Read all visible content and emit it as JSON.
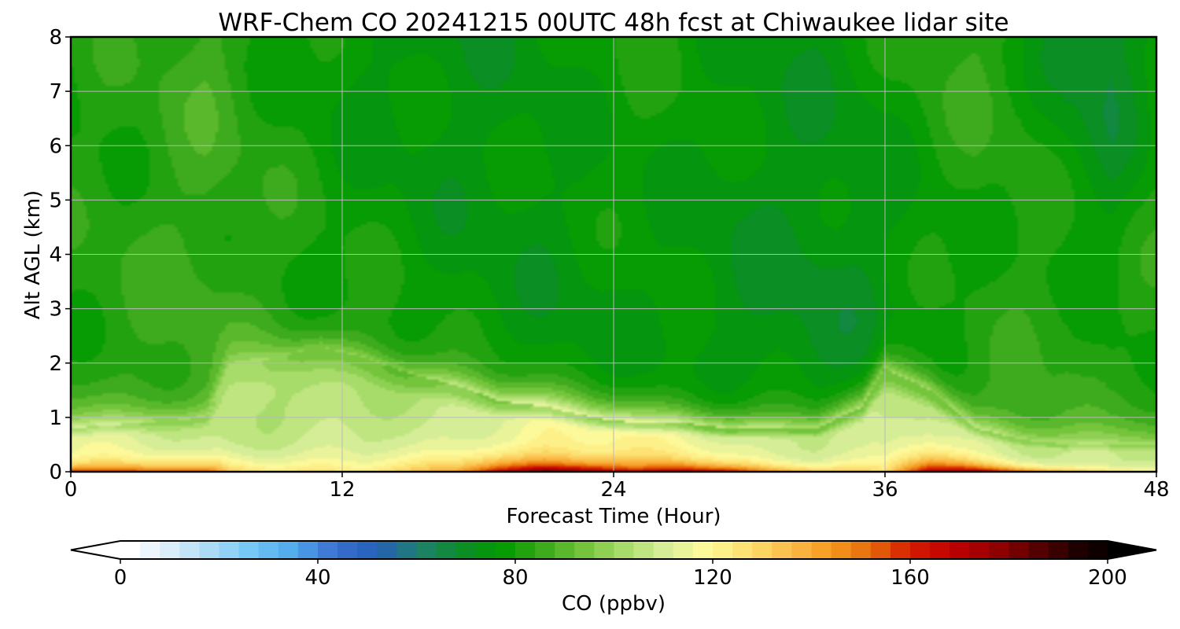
{
  "chart_data": {
    "type": "heatmap",
    "title": "WRF-Chem CO  20241215 00UTC 48h fcst at Chiwaukee lidar site",
    "xlabel": "Forecast Time (Hour)",
    "ylabel": "Alt AGL (km)",
    "xlim": [
      0,
      48
    ],
    "ylim": [
      0,
      8
    ],
    "xticks": [
      "0",
      "12",
      "24",
      "36",
      "48"
    ],
    "yticks": [
      "0",
      "1",
      "2",
      "3",
      "4",
      "5",
      "6",
      "7",
      "8"
    ],
    "grid": true,
    "colorbar": {
      "label": "CO  (ppbv)",
      "range": [
        0,
        200
      ],
      "ticks": [
        "0",
        "40",
        "80",
        "120",
        "160",
        "200"
      ],
      "extend": "both",
      "colors": [
        "#ffffff",
        "#d8ecf8",
        "#a8daf6",
        "#6fc6f5",
        "#4fa8ec",
        "#3a6fd0",
        "#2460b8",
        "#1e7f70",
        "#0d8c2a",
        "#009a00",
        "#3aa81a",
        "#72c43a",
        "#a8dc6a",
        "#d8ee9a",
        "#fffa9a",
        "#fde070",
        "#fbbe4a",
        "#f69a20",
        "#e66a0a",
        "#d41a00",
        "#c00000",
        "#960000",
        "#5a0000",
        "#200000",
        "#000000"
      ]
    },
    "profile_times": [
      0,
      3,
      6,
      7,
      9,
      11,
      13,
      15,
      17,
      19,
      21,
      23,
      25,
      27,
      29,
      31,
      33,
      35,
      36,
      38,
      40,
      42,
      44,
      46,
      48
    ],
    "pbl_top_km": [
      0.8,
      0.9,
      1.0,
      1.9,
      2.1,
      2.3,
      2.1,
      1.8,
      1.6,
      1.3,
      1.2,
      1.0,
      0.9,
      0.9,
      0.8,
      0.8,
      0.8,
      1.2,
      1.9,
      1.5,
      0.8,
      0.6,
      0.5,
      0.5,
      0.5
    ],
    "surface_co_ppbv": [
      160,
      158,
      155,
      135,
      128,
      125,
      122,
      130,
      142,
      175,
      190,
      185,
      165,
      180,
      170,
      150,
      140,
      128,
      125,
      175,
      180,
      160,
      140,
      128,
      122
    ],
    "pbl_co_ppbv": [
      112,
      110,
      108,
      104,
      103,
      102,
      103,
      106,
      110,
      114,
      116,
      116,
      118,
      116,
      114,
      110,
      108,
      106,
      104,
      110,
      112,
      110,
      108,
      106,
      105
    ],
    "free_trop_co_ppbv": [
      82,
      83,
      85,
      84,
      82,
      80,
      79,
      78,
      76,
      75,
      74,
      75,
      76,
      75,
      73,
      72,
      71,
      72,
      74,
      77,
      80,
      82,
      83,
      80,
      82
    ],
    "upper_co_ppbv": [
      80,
      82,
      86,
      84,
      80,
      78,
      75,
      74,
      73,
      74,
      76,
      78,
      80,
      79,
      76,
      75,
      74,
      76,
      78,
      82,
      84,
      80,
      70,
      66,
      78
    ]
  }
}
